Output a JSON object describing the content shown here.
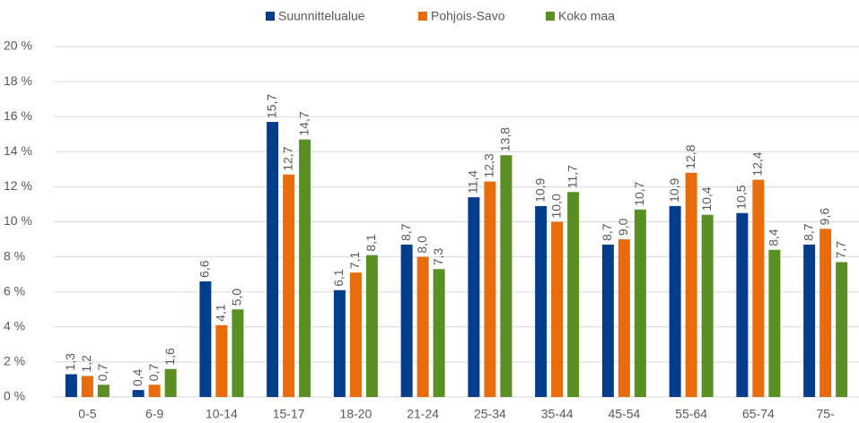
{
  "chart_data": {
    "type": "bar",
    "categories": [
      "0-5",
      "6-9",
      "10-14",
      "15-17",
      "18-20",
      "21-24",
      "25-34",
      "35-44",
      "45-54",
      "55-64",
      "65-74",
      "75-"
    ],
    "series": [
      {
        "name": "Suunnittelualue",
        "color": "#033e8c",
        "values": [
          1.3,
          0.4,
          6.6,
          15.7,
          6.1,
          8.7,
          11.4,
          10.9,
          8.7,
          10.9,
          10.5,
          8.7
        ],
        "value_labels": [
          "1,3",
          "0,4",
          "6,6",
          "15,7",
          "6,1",
          "8,7",
          "11,4",
          "10,9",
          "8,7",
          "10,9",
          "10,5",
          "8,7"
        ]
      },
      {
        "name": "Pohjois-Savo",
        "color": "#e86c0c",
        "values": [
          1.2,
          0.7,
          4.1,
          12.7,
          7.1,
          8.0,
          12.3,
          10.0,
          9.0,
          12.8,
          12.4,
          9.6
        ],
        "value_labels": [
          "1,2",
          "0,7",
          "4,1",
          "12,7",
          "7,1",
          "8,0",
          "12,3",
          "10,0",
          "9,0",
          "12,8",
          "12,4",
          "9,6"
        ]
      },
      {
        "name": "Koko maa",
        "color": "#5a8f23",
        "values": [
          0.7,
          1.6,
          5.0,
          14.7,
          8.1,
          7.3,
          13.8,
          11.7,
          10.7,
          10.4,
          8.4,
          7.7
        ],
        "value_labels": [
          "0,7",
          "1,6",
          "5,0",
          "14,7",
          "8,1",
          "7,3",
          "13,8",
          "11,7",
          "10,7",
          "10,4",
          "8,4",
          "7,7"
        ]
      }
    ],
    "ylim": [
      0,
      20
    ],
    "yticks": [
      {
        "value": 0,
        "label": "0 %"
      },
      {
        "value": 2,
        "label": "2 %"
      },
      {
        "value": 4,
        "label": "4 %"
      },
      {
        "value": 6,
        "label": "6 %"
      },
      {
        "value": 8,
        "label": "8 %"
      },
      {
        "value": 10,
        "label": "10 %"
      },
      {
        "value": 12,
        "label": "12 %"
      },
      {
        "value": 14,
        "label": "14 %"
      },
      {
        "value": 16,
        "label": "16 %"
      },
      {
        "value": 18,
        "label": "18 %"
      },
      {
        "value": 20,
        "label": "20 %"
      }
    ],
    "grid": true,
    "legend": "top"
  }
}
